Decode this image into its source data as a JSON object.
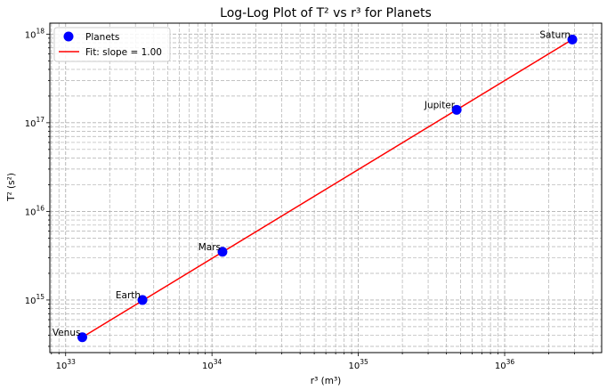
{
  "chart_data": {
    "type": "scatter",
    "title": "Log-Log Plot of T² vs r³ for Planets",
    "xlabel": "r³ (m³)",
    "ylabel": "T² (s²)",
    "xscale": "log",
    "yscale": "log",
    "xlim": [
      7.8e+32,
      4.6e+36
    ],
    "ylim": [
      255000000000000.0,
      1.33e+18
    ],
    "grid": true,
    "legend_position": "top-left",
    "series": [
      {
        "name": "Planets",
        "kind": "scatter",
        "color": "#0000ff",
        "points": [
          {
            "label": "Venus",
            "x": 1.3e+33,
            "y": 380000000000000.0
          },
          {
            "label": "Earth",
            "x": 3.35e+33,
            "y": 1000000000000000.0
          },
          {
            "label": "Mars",
            "x": 1.18e+34,
            "y": 3500000000000000.0
          },
          {
            "label": "Jupiter",
            "x": 4.7e+35,
            "y": 1.4e+17
          },
          {
            "label": "Saturn",
            "x": 2.9e+36,
            "y": 8.7e+17
          }
        ]
      },
      {
        "name": "Fit: slope = 1.00",
        "kind": "line",
        "color": "#ff0000",
        "x": [
          1.3e+33,
          2.9e+36
        ],
        "y": [
          380000000000000.0,
          8.7e+17
        ]
      }
    ],
    "x_ticks": [
      {
        "value": 1e+33,
        "base": "10",
        "exp": "33"
      },
      {
        "value": 1e+34,
        "base": "10",
        "exp": "34"
      },
      {
        "value": 1e+35,
        "base": "10",
        "exp": "35"
      },
      {
        "value": 1e+36,
        "base": "10",
        "exp": "36"
      }
    ],
    "y_ticks": [
      {
        "value": 1000000000000000.0,
        "base": "10",
        "exp": "15"
      },
      {
        "value": 1e+16,
        "base": "10",
        "exp": "16"
      },
      {
        "value": 1e+17,
        "base": "10",
        "exp": "17"
      },
      {
        "value": 1e+18,
        "base": "10",
        "exp": "18"
      }
    ]
  }
}
